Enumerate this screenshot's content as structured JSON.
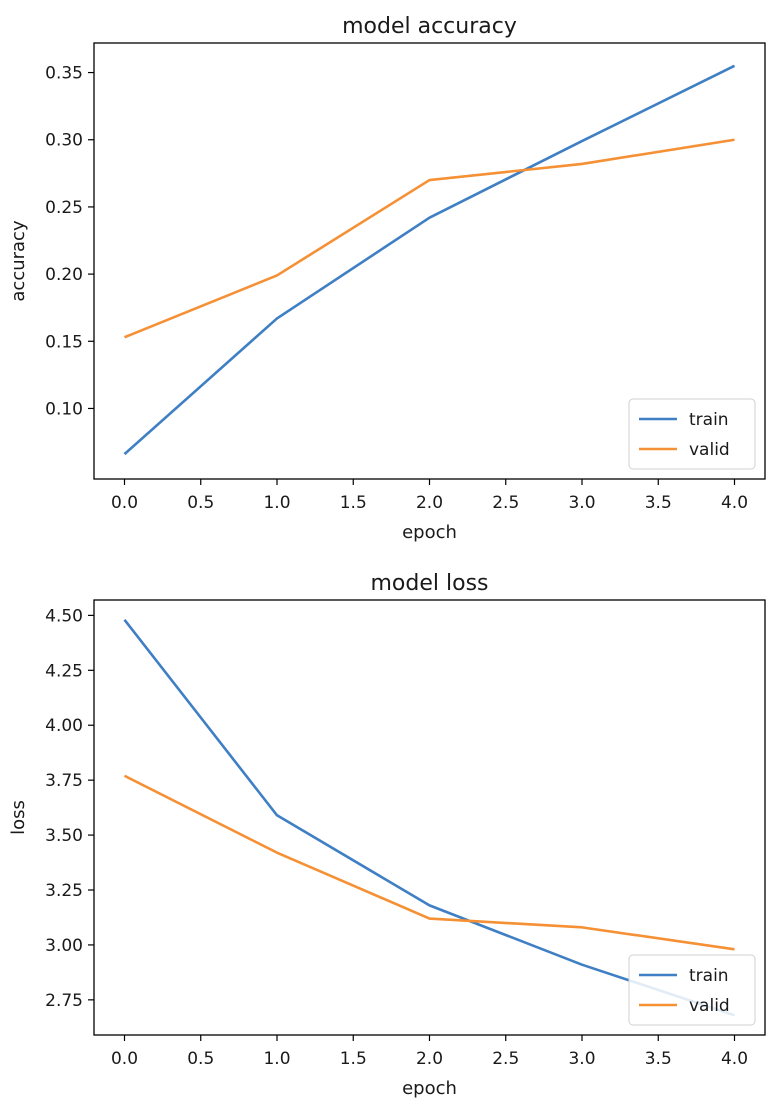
{
  "chart_data": [
    {
      "type": "line",
      "title": "model accuracy",
      "xlabel": "epoch",
      "ylabel": "accuracy",
      "x": [
        0,
        1,
        2,
        3,
        4
      ],
      "xlim": [
        -0.2,
        4.2
      ],
      "ylim": [
        0.0475,
        0.372
      ],
      "xticks": [
        0.0,
        0.5,
        1.0,
        1.5,
        2.0,
        2.5,
        3.0,
        3.5,
        4.0
      ],
      "xticklabels": [
        "0.0",
        "0.5",
        "1.0",
        "1.5",
        "2.0",
        "2.5",
        "3.0",
        "3.5",
        "4.0"
      ],
      "yticks": [
        0.1,
        0.15,
        0.2,
        0.25,
        0.3,
        0.35
      ],
      "yticklabels": [
        "0.10",
        "0.15",
        "0.20",
        "0.25",
        "0.30",
        "0.35"
      ],
      "series": [
        {
          "name": "train",
          "color": "#3f7fc3",
          "values": [
            0.066,
            0.167,
            0.242,
            0.299,
            0.355
          ]
        },
        {
          "name": "valid",
          "color": "#f59035",
          "values": [
            0.153,
            0.199,
            0.27,
            0.282,
            0.3
          ]
        }
      ],
      "legend": "lower right",
      "grid": false
    },
    {
      "type": "line",
      "title": "model loss",
      "xlabel": "epoch",
      "ylabel": "loss",
      "x": [
        0,
        1,
        2,
        3,
        4
      ],
      "xlim": [
        -0.2,
        4.2
      ],
      "ylim": [
        2.59,
        4.57
      ],
      "xticks": [
        0.0,
        0.5,
        1.0,
        1.5,
        2.0,
        2.5,
        3.0,
        3.5,
        4.0
      ],
      "xticklabels": [
        "0.0",
        "0.5",
        "1.0",
        "1.5",
        "2.0",
        "2.5",
        "3.0",
        "3.5",
        "4.0"
      ],
      "yticks": [
        2.75,
        3.0,
        3.25,
        3.5,
        3.75,
        4.0,
        4.25,
        4.5
      ],
      "yticklabels": [
        "2.75",
        "3.00",
        "3.25",
        "3.50",
        "3.75",
        "4.00",
        "4.25",
        "4.50"
      ],
      "series": [
        {
          "name": "train",
          "color": "#3f7fc3",
          "values": [
            4.48,
            3.59,
            3.18,
            2.91,
            2.68
          ]
        },
        {
          "name": "valid",
          "color": "#f59035",
          "values": [
            3.77,
            3.42,
            3.12,
            3.08,
            2.98
          ]
        }
      ],
      "legend": "lower right",
      "grid": false
    }
  ]
}
